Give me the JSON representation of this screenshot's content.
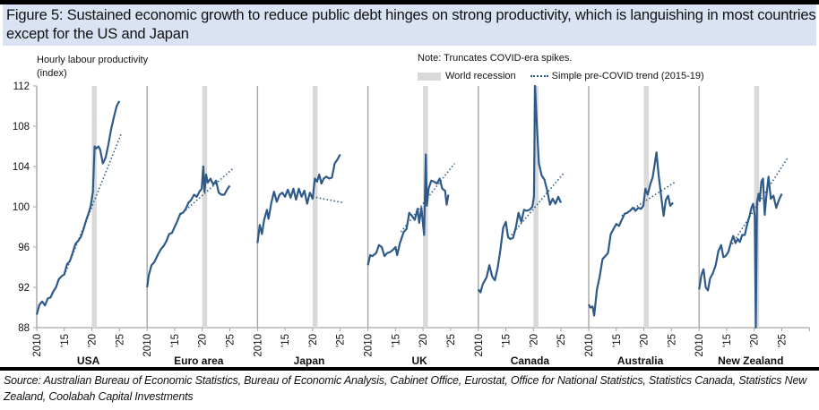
{
  "title": "Figure 5: Sustained economic growth to reduce public debt hinges on strong productivity, which is languishing in most countries except for the US and Japan",
  "note": "Note: Truncates COVID-era spikes.",
  "source": "Source: Australian Bureau of Economic Statistics, Bureau of Economic Analysis, Cabinet Office, Eurostat, Office for National Statistics, Statistics Canada, Statistics New Zealand, Coolabah Capital Investments",
  "colors": {
    "line": "#2e5a8a",
    "recession": "#d9d9d9",
    "axis": "#a6a6a6",
    "title_bg": "#dae3f3"
  },
  "chart_data": {
    "type": "line",
    "title": "Figure 5: Sustained economic growth to reduce public debt hinges on strong productivity, which is languishing in most countries except for the US and Japan",
    "ylabel": "Hourly labour productivity (index)",
    "ylim": [
      88,
      112
    ],
    "yticks": [
      "88",
      "92",
      "96",
      "100",
      "104",
      "108",
      "112"
    ],
    "xticks": [
      "2010",
      "'15",
      "'20",
      "'25"
    ],
    "xlim": [
      2010,
      2029
    ],
    "legend": [
      {
        "label": "World recession",
        "style": "grey band"
      },
      {
        "label": "Simple pre-COVID trend (2015-19)",
        "style": "dotted line"
      }
    ],
    "legend_position": "top-right",
    "recession": [
      2020.0,
      2020.9
    ],
    "panels": [
      {
        "name": "USA",
        "series": [
          [
            2010,
            89.3
          ],
          [
            2010.5,
            90.3
          ],
          [
            2011,
            90.6
          ],
          [
            2011.5,
            90.2
          ],
          [
            2012,
            90.9
          ],
          [
            2012.5,
            91.0
          ],
          [
            2013,
            91.6
          ],
          [
            2013.5,
            92.0
          ],
          [
            2014,
            92.8
          ],
          [
            2014.5,
            93.1
          ],
          [
            2015,
            93.3
          ],
          [
            2015.5,
            94.3
          ],
          [
            2016,
            94.6
          ],
          [
            2016.5,
            95.4
          ],
          [
            2017,
            96.3
          ],
          [
            2017.5,
            96.6
          ],
          [
            2018,
            97.0
          ],
          [
            2018.5,
            97.8
          ],
          [
            2019,
            98.7
          ],
          [
            2019.5,
            99.5
          ],
          [
            2019.8,
            100.1
          ],
          [
            2020.2,
            101.5
          ],
          [
            2020.5,
            106.0
          ],
          [
            2020.8,
            105.8
          ],
          [
            2021.2,
            106.0
          ],
          [
            2021.5,
            105.7
          ],
          [
            2022,
            104.3
          ],
          [
            2022.5,
            104.9
          ],
          [
            2023,
            106.2
          ],
          [
            2023.5,
            107.7
          ],
          [
            2024,
            108.9
          ],
          [
            2024.5,
            110.0
          ],
          [
            2025,
            110.5
          ]
        ],
        "trend": [
          [
            2015,
            93.2
          ],
          [
            2025.3,
            107.2
          ]
        ]
      },
      {
        "name": "Euro area",
        "series": [
          [
            2010,
            92.0
          ],
          [
            2010.3,
            93.2
          ],
          [
            2010.8,
            94.2
          ],
          [
            2011.3,
            94.5
          ],
          [
            2012,
            95.3
          ],
          [
            2012.5,
            95.8
          ],
          [
            2013,
            96.1
          ],
          [
            2013.5,
            96.6
          ],
          [
            2014,
            97.3
          ],
          [
            2014.5,
            97.4
          ],
          [
            2015,
            98.0
          ],
          [
            2015.5,
            98.6
          ],
          [
            2016,
            99.3
          ],
          [
            2016.5,
            99.4
          ],
          [
            2017,
            99.8
          ],
          [
            2017.5,
            100.4
          ],
          [
            2018,
            100.7
          ],
          [
            2018.5,
            101.2
          ],
          [
            2019,
            101.0
          ],
          [
            2019.5,
            101.5
          ],
          [
            2019.9,
            101.8
          ],
          [
            2020.2,
            104.0
          ],
          [
            2020.4,
            101.5
          ],
          [
            2020.7,
            103.2
          ],
          [
            2021,
            102.4
          ],
          [
            2021.5,
            102.8
          ],
          [
            2022,
            102.2
          ],
          [
            2022.5,
            102.6
          ],
          [
            2023,
            101.4
          ],
          [
            2023.5,
            101.2
          ],
          [
            2024,
            101.2
          ],
          [
            2024.5,
            101.7
          ],
          [
            2025,
            102.1
          ]
        ],
        "trend": [
          [
            2016,
            99.2
          ],
          [
            2025.8,
            103.9
          ]
        ]
      },
      {
        "name": "Japan",
        "series": [
          [
            2010,
            96.4
          ],
          [
            2010.4,
            98.2
          ],
          [
            2010.8,
            97.3
          ],
          [
            2011.2,
            98.7
          ],
          [
            2011.7,
            99.7
          ],
          [
            2012,
            98.8
          ],
          [
            2012.5,
            100.4
          ],
          [
            2013,
            101.5
          ],
          [
            2013.5,
            100.5
          ],
          [
            2014,
            101.2
          ],
          [
            2014.5,
            101.4
          ],
          [
            2015,
            101.0
          ],
          [
            2015.5,
            101.7
          ],
          [
            2016,
            100.9
          ],
          [
            2016.5,
            101.8
          ],
          [
            2017,
            100.7
          ],
          [
            2017.5,
            101.8
          ],
          [
            2018,
            101.0
          ],
          [
            2018.5,
            101.6
          ],
          [
            2019,
            100.3
          ],
          [
            2019.5,
            101.4
          ],
          [
            2020,
            100.8
          ],
          [
            2020.4,
            102.8
          ],
          [
            2020.8,
            102.5
          ],
          [
            2021.2,
            103.2
          ],
          [
            2021.6,
            102.3
          ],
          [
            2022,
            102.8
          ],
          [
            2022.5,
            103.0
          ],
          [
            2023,
            102.8
          ],
          [
            2023.5,
            102.9
          ],
          [
            2024,
            104.3
          ],
          [
            2024.5,
            104.7
          ],
          [
            2025,
            105.2
          ]
        ],
        "trend": [
          [
            2020,
            101.0
          ],
          [
            2025.6,
            100.4
          ]
        ]
      },
      {
        "name": "UK",
        "series": [
          [
            2010,
            94.2
          ],
          [
            2010.4,
            95.2
          ],
          [
            2010.8,
            95.1
          ],
          [
            2011.5,
            95.4
          ],
          [
            2012,
            96.2
          ],
          [
            2012.5,
            96.0
          ],
          [
            2013,
            95.1
          ],
          [
            2013.5,
            95.4
          ],
          [
            2014,
            95.5
          ],
          [
            2014.5,
            95.7
          ],
          [
            2015,
            96.0
          ],
          [
            2015.3,
            95.2
          ],
          [
            2015.8,
            96.4
          ],
          [
            2016.5,
            97.5
          ],
          [
            2017,
            97.8
          ],
          [
            2017.5,
            99.4
          ],
          [
            2018,
            99.1
          ],
          [
            2018.5,
            98.7
          ],
          [
            2019,
            99.8
          ],
          [
            2019.3,
            98.4
          ],
          [
            2019.7,
            99.9
          ],
          [
            2020.2,
            97.2
          ],
          [
            2020.5,
            105.2
          ],
          [
            2020.7,
            100.1
          ],
          [
            2021,
            101.8
          ],
          [
            2021.5,
            102.6
          ],
          [
            2022,
            102.5
          ],
          [
            2022.5,
            102.3
          ],
          [
            2023,
            102.8
          ],
          [
            2023.5,
            101.8
          ],
          [
            2024,
            101.6
          ],
          [
            2024.3,
            100.2
          ],
          [
            2024.6,
            101.2
          ]
        ],
        "trend": [
          [
            2016,
            97.5
          ],
          [
            2025.7,
            104.3
          ]
        ]
      },
      {
        "name": "Canada",
        "series": [
          [
            2010,
            91.8
          ],
          [
            2010.4,
            91.5
          ],
          [
            2010.8,
            92.3
          ],
          [
            2011.5,
            93.0
          ],
          [
            2012,
            94.2
          ],
          [
            2012.5,
            93.1
          ],
          [
            2013,
            92.7
          ],
          [
            2013.5,
            93.9
          ],
          [
            2014,
            95.7
          ],
          [
            2014.5,
            97.9
          ],
          [
            2015,
            98.5
          ],
          [
            2015.4,
            97.0
          ],
          [
            2015.8,
            96.8
          ],
          [
            2016.3,
            96.9
          ],
          [
            2016.8,
            97.9
          ],
          [
            2017.3,
            99.4
          ],
          [
            2017.8,
            98.5
          ],
          [
            2018.3,
            99.7
          ],
          [
            2018.8,
            99.6
          ],
          [
            2019.3,
            99.7
          ],
          [
            2019.8,
            100.0
          ],
          [
            2020.1,
            101.0
          ],
          [
            2020.3,
            112.0
          ],
          [
            2020.6,
            108.3
          ],
          [
            2021,
            104.3
          ],
          [
            2021.5,
            103.1
          ],
          [
            2022,
            102.7
          ],
          [
            2022.5,
            101.6
          ],
          [
            2023,
            100.2
          ],
          [
            2023.5,
            100.8
          ],
          [
            2024,
            100.3
          ],
          [
            2024.5,
            101.0
          ],
          [
            2025,
            100.4
          ]
        ],
        "trend": [
          [
            2016,
            97.2
          ],
          [
            2025.6,
            103.4
          ]
        ]
      },
      {
        "name": "Australia",
        "series": [
          [
            2010,
            90.3
          ],
          [
            2010.3,
            90.0
          ],
          [
            2010.7,
            90.1
          ],
          [
            2011,
            89.2
          ],
          [
            2011.5,
            91.8
          ],
          [
            2012,
            93.1
          ],
          [
            2012.5,
            94.8
          ],
          [
            2013,
            95.1
          ],
          [
            2013.5,
            95.4
          ],
          [
            2014,
            97.3
          ],
          [
            2014.5,
            97.8
          ],
          [
            2015,
            98.3
          ],
          [
            2015.5,
            98.1
          ],
          [
            2016,
            98.7
          ],
          [
            2016.5,
            99.3
          ],
          [
            2017,
            99.4
          ],
          [
            2017.5,
            99.6
          ],
          [
            2018,
            99.9
          ],
          [
            2018.5,
            99.6
          ],
          [
            2019,
            99.9
          ],
          [
            2019.5,
            99.8
          ],
          [
            2019.9,
            100.1
          ],
          [
            2020.3,
            101.8
          ],
          [
            2020.7,
            101.2
          ],
          [
            2021.2,
            102.3
          ],
          [
            2021.6,
            102.9
          ],
          [
            2022,
            104.3
          ],
          [
            2022.3,
            105.4
          ],
          [
            2022.7,
            103.1
          ],
          [
            2023.2,
            100.8
          ],
          [
            2023.6,
            99.1
          ],
          [
            2024,
            100.7
          ],
          [
            2024.4,
            101.1
          ],
          [
            2024.8,
            100.1
          ],
          [
            2025.3,
            100.4
          ]
        ],
        "trend": [
          [
            2016,
            99.1
          ],
          [
            2025.8,
            102.5
          ]
        ]
      },
      {
        "name": "New Zealand",
        "series": [
          [
            2010,
            91.8
          ],
          [
            2010.4,
            93.2
          ],
          [
            2010.8,
            93.8
          ],
          [
            2011.2,
            92.0
          ],
          [
            2011.6,
            91.7
          ],
          [
            2012,
            92.9
          ],
          [
            2012.5,
            93.4
          ],
          [
            2013,
            94.2
          ],
          [
            2013.5,
            95.6
          ],
          [
            2014,
            96.2
          ],
          [
            2014.4,
            95.0
          ],
          [
            2014.8,
            95.1
          ],
          [
            2015.3,
            95.5
          ],
          [
            2015.8,
            96.5
          ],
          [
            2016.2,
            97.1
          ],
          [
            2016.6,
            96.4
          ],
          [
            2017,
            96.8
          ],
          [
            2017.4,
            96.5
          ],
          [
            2017.8,
            97.2
          ],
          [
            2018.3,
            97.2
          ],
          [
            2018.7,
            98.2
          ],
          [
            2019.2,
            99.2
          ],
          [
            2019.5,
            99.9
          ],
          [
            2019.8,
            100.3
          ],
          [
            2020.1,
            99.1
          ],
          [
            2020.3,
            88.0
          ],
          [
            2020.5,
            100.4
          ],
          [
            2020.8,
            101.3
          ],
          [
            2021,
            100.6
          ],
          [
            2021.3,
            102.5
          ],
          [
            2021.6,
            102.8
          ],
          [
            2021.9,
            99.2
          ],
          [
            2022.2,
            101.0
          ],
          [
            2022.6,
            103.0
          ],
          [
            2023,
            100.8
          ],
          [
            2023.5,
            101.1
          ],
          [
            2024,
            99.9
          ],
          [
            2024.5,
            100.7
          ],
          [
            2025,
            101.3
          ]
        ],
        "trend": [
          [
            2016,
            96.3
          ],
          [
            2026,
            104.8
          ]
        ]
      }
    ]
  }
}
